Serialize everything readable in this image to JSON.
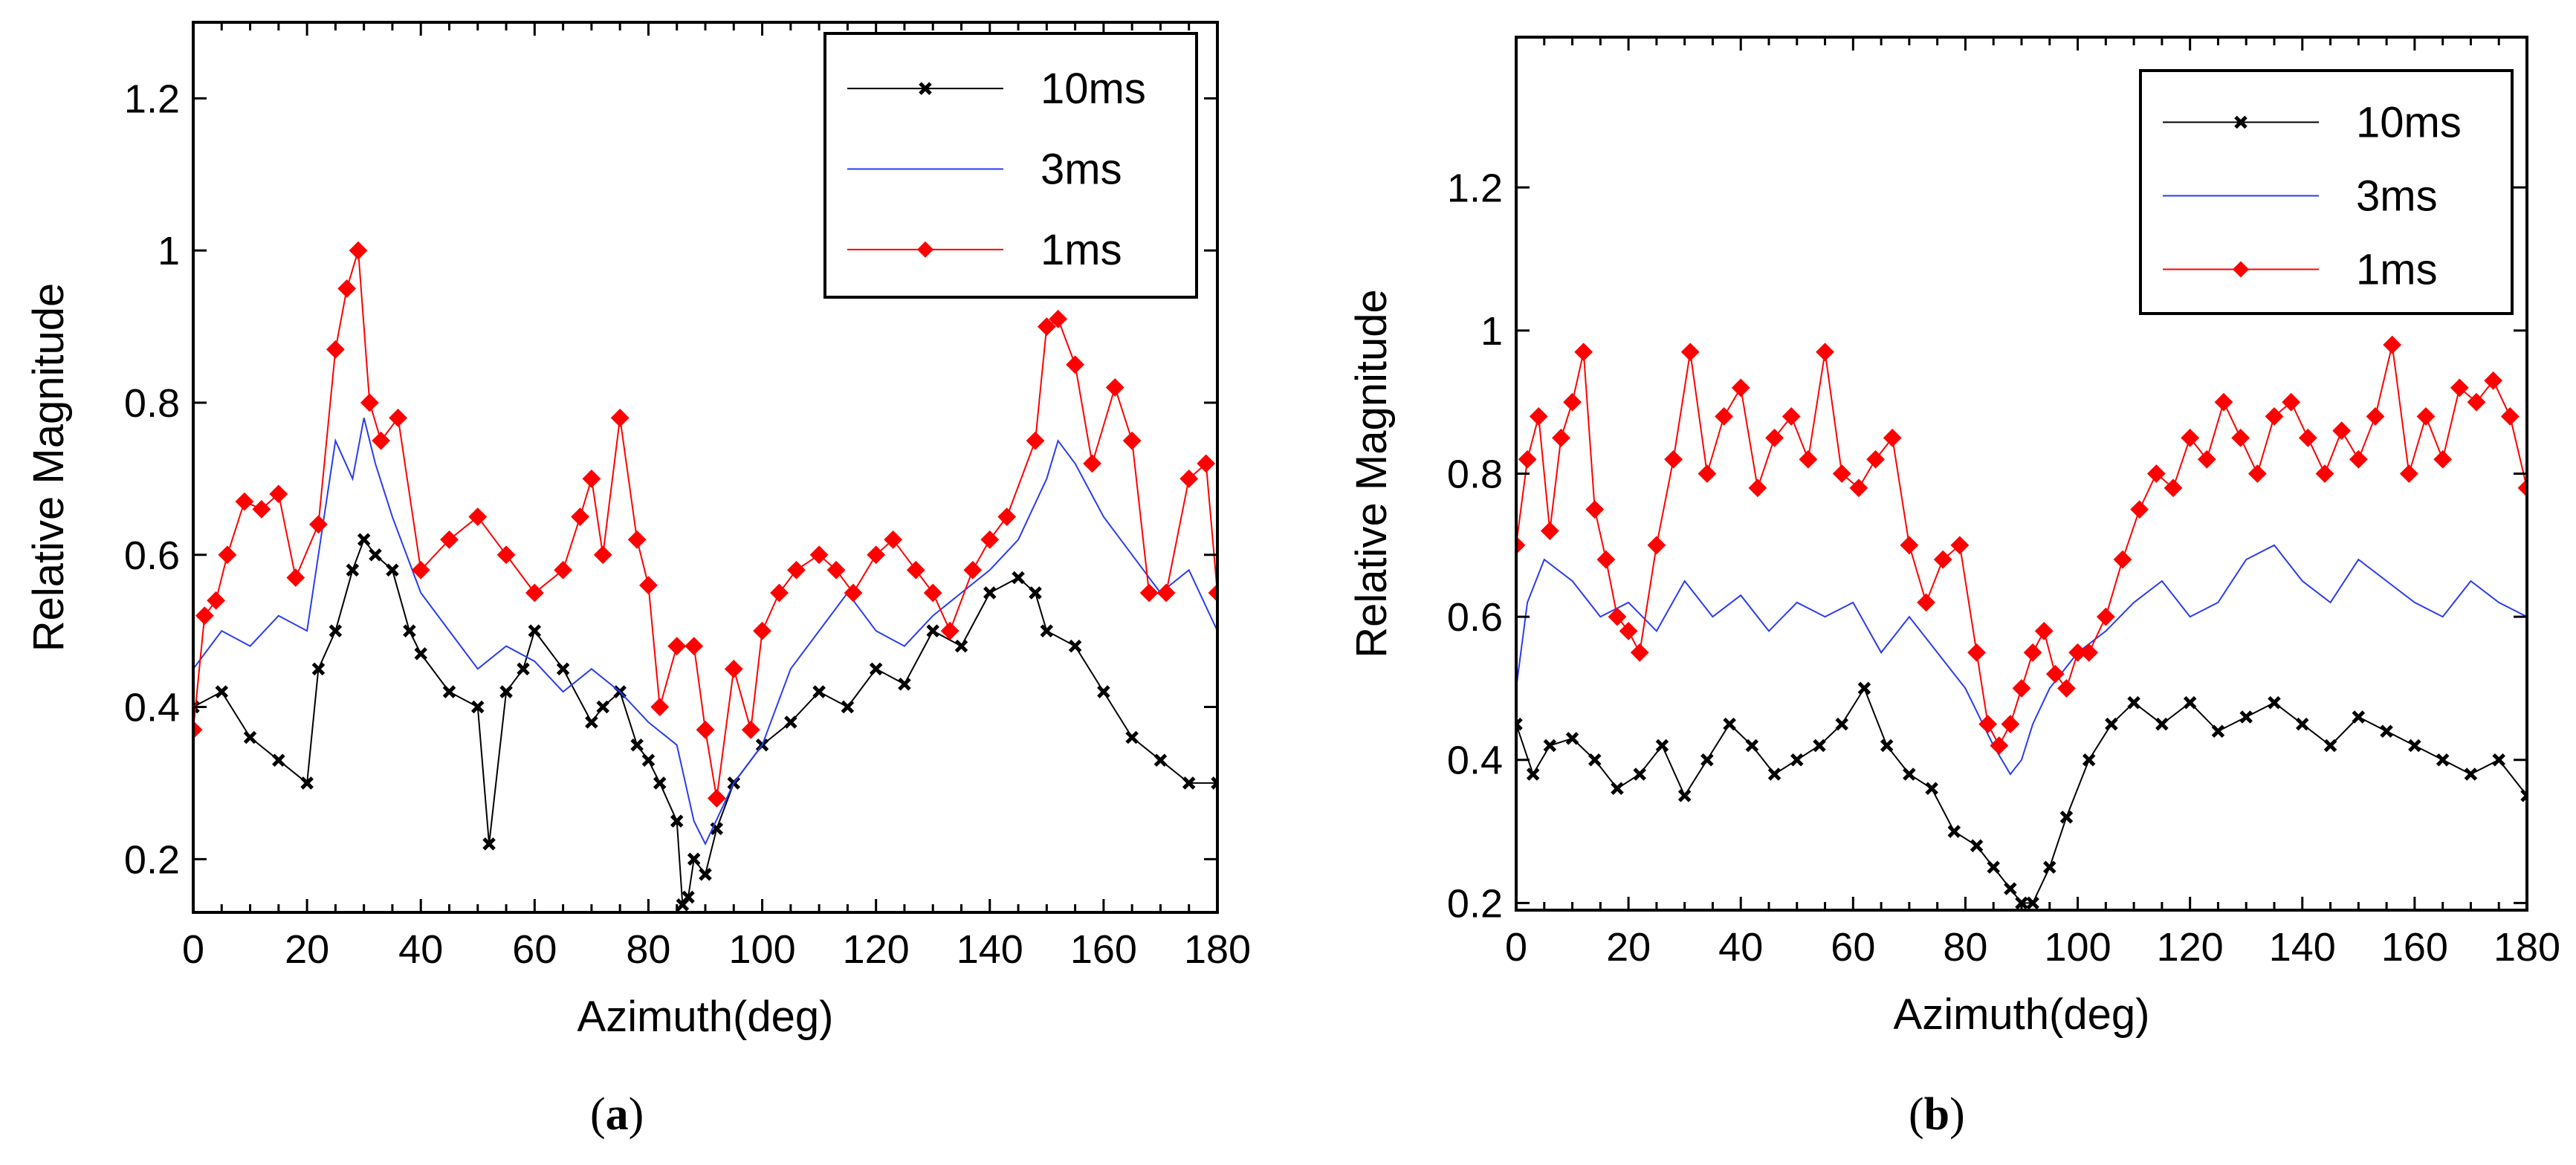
{
  "colors": {
    "10ms": "#000000",
    "3ms": "#2a3cf0",
    "1ms": "#ff0000"
  },
  "panels": [
    {
      "label_prefix": "(",
      "label_letter": "a",
      "label_suffix": ")"
    },
    {
      "label_prefix": "(",
      "label_letter": "b",
      "label_suffix": ")"
    }
  ],
  "chart_data": [
    {
      "type": "line",
      "title": "",
      "xlabel": "Azimuth(deg)",
      "ylabel": "Relative Magnitude",
      "xlim": [
        0,
        180
      ],
      "ylim": [
        0.13,
        1.3
      ],
      "xticks": [
        "0",
        "20",
        "40",
        "60",
        "80",
        "100",
        "120",
        "140",
        "160",
        "180"
      ],
      "yticks": [
        "0.2",
        "0.4",
        "0.6",
        "0.8",
        "1",
        "1.2"
      ],
      "legend_position": "top-right",
      "legend": [
        "10ms",
        "3ms",
        "1ms"
      ],
      "series": [
        {
          "name": "10ms",
          "marker": "x",
          "x": [
            0,
            5,
            10,
            15,
            20,
            22,
            25,
            28,
            30,
            32,
            35,
            38,
            40,
            45,
            50,
            52,
            55,
            58,
            60,
            65,
            70,
            72,
            75,
            78,
            80,
            82,
            85,
            86,
            87,
            88,
            90,
            92,
            95,
            100,
            105,
            110,
            115,
            120,
            125,
            130,
            135,
            140,
            145,
            148,
            150,
            155,
            160,
            165,
            170,
            175,
            180
          ],
          "y": [
            0.4,
            0.42,
            0.36,
            0.33,
            0.3,
            0.45,
            0.5,
            0.58,
            0.62,
            0.6,
            0.58,
            0.5,
            0.47,
            0.42,
            0.4,
            0.22,
            0.42,
            0.45,
            0.5,
            0.45,
            0.38,
            0.4,
            0.42,
            0.35,
            0.33,
            0.3,
            0.25,
            0.14,
            0.15,
            0.2,
            0.18,
            0.24,
            0.3,
            0.35,
            0.38,
            0.42,
            0.4,
            0.45,
            0.43,
            0.5,
            0.48,
            0.55,
            0.57,
            0.55,
            0.5,
            0.48,
            0.42,
            0.36,
            0.33,
            0.3,
            0.3
          ]
        },
        {
          "name": "3ms",
          "marker": "none",
          "x": [
            0,
            5,
            10,
            15,
            20,
            25,
            28,
            30,
            32,
            35,
            40,
            45,
            50,
            55,
            60,
            65,
            70,
            75,
            80,
            85,
            88,
            90,
            95,
            100,
            105,
            110,
            115,
            120,
            125,
            130,
            135,
            140,
            145,
            150,
            152,
            155,
            160,
            165,
            170,
            175,
            180
          ],
          "y": [
            0.45,
            0.5,
            0.48,
            0.52,
            0.5,
            0.75,
            0.7,
            0.78,
            0.72,
            0.65,
            0.55,
            0.5,
            0.45,
            0.48,
            0.46,
            0.42,
            0.45,
            0.42,
            0.38,
            0.35,
            0.25,
            0.22,
            0.3,
            0.35,
            0.45,
            0.5,
            0.55,
            0.5,
            0.48,
            0.52,
            0.55,
            0.58,
            0.62,
            0.7,
            0.75,
            0.72,
            0.65,
            0.6,
            0.55,
            0.58,
            0.5
          ]
        },
        {
          "name": "1ms",
          "marker": "diamond",
          "x": [
            0,
            2,
            4,
            6,
            9,
            12,
            15,
            18,
            22,
            25,
            27,
            29,
            31,
            33,
            36,
            40,
            45,
            50,
            55,
            60,
            65,
            68,
            70,
            72,
            75,
            78,
            80,
            82,
            85,
            88,
            90,
            92,
            95,
            98,
            100,
            103,
            106,
            110,
            113,
            116,
            120,
            123,
            127,
            130,
            133,
            137,
            140,
            143,
            148,
            150,
            152,
            155,
            158,
            162,
            165,
            168,
            171,
            175,
            178,
            180
          ],
          "y": [
            0.37,
            0.52,
            0.54,
            0.6,
            0.67,
            0.66,
            0.68,
            0.57,
            0.64,
            0.87,
            0.95,
            1.0,
            0.8,
            0.75,
            0.78,
            0.58,
            0.62,
            0.65,
            0.6,
            0.55,
            0.58,
            0.65,
            0.7,
            0.6,
            0.78,
            0.62,
            0.56,
            0.4,
            0.48,
            0.48,
            0.37,
            0.28,
            0.45,
            0.37,
            0.5,
            0.55,
            0.58,
            0.6,
            0.58,
            0.55,
            0.6,
            0.62,
            0.58,
            0.55,
            0.5,
            0.58,
            0.62,
            0.65,
            0.75,
            0.9,
            0.91,
            0.85,
            0.72,
            0.82,
            0.75,
            0.55,
            0.55,
            0.7,
            0.72,
            0.55
          ]
        }
      ]
    },
    {
      "type": "line",
      "title": "",
      "xlabel": "Azimuth(deg)",
      "ylabel": "Relative Magnitude",
      "xlim": [
        0,
        180
      ],
      "ylim": [
        0.19,
        1.41
      ],
      "xticks": [
        "0",
        "20",
        "40",
        "60",
        "80",
        "100",
        "120",
        "140",
        "160",
        "180"
      ],
      "yticks": [
        "0.2",
        "0.4",
        "0.6",
        "0.8",
        "1",
        "1.2"
      ],
      "legend_position": "top-right",
      "legend": [
        "10ms",
        "3ms",
        "1ms"
      ],
      "series": [
        {
          "name": "10ms",
          "marker": "x",
          "x": [
            0,
            3,
            6,
            10,
            14,
            18,
            22,
            26,
            30,
            34,
            38,
            42,
            46,
            50,
            54,
            58,
            62,
            66,
            70,
            74,
            78,
            82,
            85,
            88,
            90,
            92,
            95,
            98,
            102,
            106,
            110,
            115,
            120,
            125,
            130,
            135,
            140,
            145,
            150,
            155,
            160,
            165,
            170,
            175,
            180
          ],
          "y": [
            0.45,
            0.38,
            0.42,
            0.43,
            0.4,
            0.36,
            0.38,
            0.42,
            0.35,
            0.4,
            0.45,
            0.42,
            0.38,
            0.4,
            0.42,
            0.45,
            0.5,
            0.42,
            0.38,
            0.36,
            0.3,
            0.28,
            0.25,
            0.22,
            0.2,
            0.2,
            0.25,
            0.32,
            0.4,
            0.45,
            0.48,
            0.45,
            0.48,
            0.44,
            0.46,
            0.48,
            0.45,
            0.42,
            0.46,
            0.44,
            0.42,
            0.4,
            0.38,
            0.4,
            0.35
          ]
        },
        {
          "name": "3ms",
          "marker": "none",
          "x": [
            0,
            2,
            5,
            10,
            15,
            20,
            25,
            30,
            35,
            40,
            45,
            50,
            55,
            60,
            65,
            70,
            75,
            80,
            85,
            88,
            90,
            92,
            95,
            100,
            105,
            110,
            115,
            120,
            125,
            130,
            135,
            140,
            145,
            150,
            155,
            160,
            165,
            170,
            175,
            180
          ],
          "y": [
            0.5,
            0.62,
            0.68,
            0.65,
            0.6,
            0.62,
            0.58,
            0.65,
            0.6,
            0.63,
            0.58,
            0.62,
            0.6,
            0.62,
            0.55,
            0.6,
            0.55,
            0.5,
            0.42,
            0.38,
            0.4,
            0.45,
            0.5,
            0.55,
            0.58,
            0.62,
            0.65,
            0.6,
            0.62,
            0.68,
            0.7,
            0.65,
            0.62,
            0.68,
            0.65,
            0.62,
            0.6,
            0.65,
            0.62,
            0.6
          ]
        },
        {
          "name": "1ms",
          "marker": "diamond",
          "x": [
            0,
            2,
            4,
            6,
            8,
            10,
            12,
            14,
            16,
            18,
            20,
            22,
            25,
            28,
            31,
            34,
            37,
            40,
            43,
            46,
            49,
            52,
            55,
            58,
            61,
            64,
            67,
            70,
            73,
            76,
            79,
            82,
            84,
            86,
            88,
            90,
            92,
            94,
            96,
            98,
            100,
            102,
            105,
            108,
            111,
            114,
            117,
            120,
            123,
            126,
            129,
            132,
            135,
            138,
            141,
            144,
            147,
            150,
            153,
            156,
            159,
            162,
            165,
            168,
            171,
            174,
            177,
            180
          ],
          "y": [
            0.7,
            0.82,
            0.88,
            0.72,
            0.85,
            0.9,
            0.97,
            0.75,
            0.68,
            0.6,
            0.58,
            0.55,
            0.7,
            0.82,
            0.97,
            0.8,
            0.88,
            0.92,
            0.78,
            0.85,
            0.88,
            0.82,
            0.97,
            0.8,
            0.78,
            0.82,
            0.85,
            0.7,
            0.62,
            0.68,
            0.7,
            0.55,
            0.45,
            0.42,
            0.45,
            0.5,
            0.55,
            0.58,
            0.52,
            0.5,
            0.55,
            0.55,
            0.6,
            0.68,
            0.75,
            0.8,
            0.78,
            0.85,
            0.82,
            0.9,
            0.85,
            0.8,
            0.88,
            0.9,
            0.85,
            0.8,
            0.86,
            0.82,
            0.88,
            0.98,
            0.8,
            0.88,
            0.82,
            0.92,
            0.9,
            0.93,
            0.88,
            0.78
          ]
        }
      ]
    }
  ]
}
